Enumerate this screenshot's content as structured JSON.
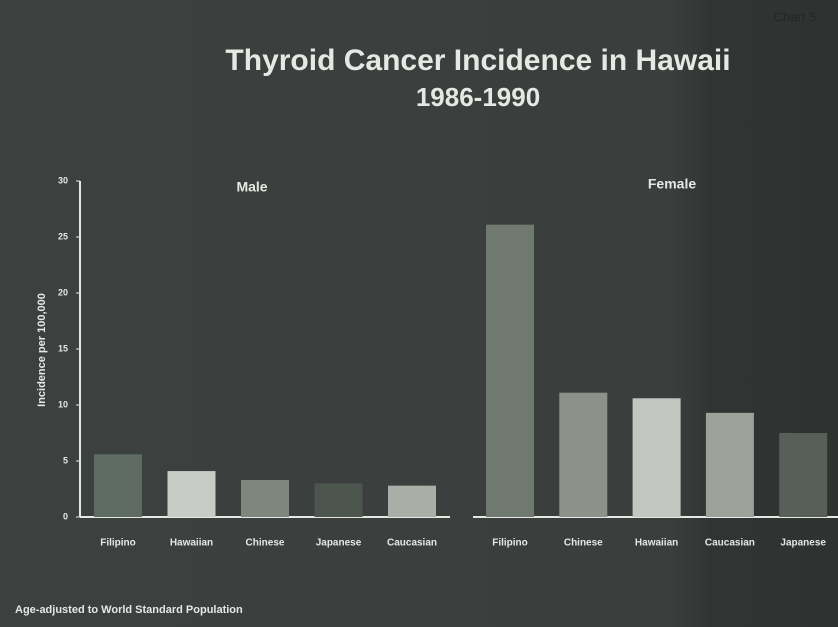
{
  "header": {
    "label": "Chart 5",
    "title": "Thyroid Cancer Incidence in Hawaii",
    "subtitle": "1986-1990"
  },
  "footnote": "Age-adjusted to World Standard Population",
  "chart_data": [
    {
      "type": "bar",
      "title": "Male",
      "y_label": "Incidence per 100,000",
      "categories": [
        "Filipino",
        "Hawaiian",
        "Chinese",
        "Japanese",
        "Caucasian"
      ],
      "values": [
        5.6,
        4.1,
        3.3,
        3.0,
        2.8
      ],
      "colors": [
        "#5d6b62",
        "#c9ccc6",
        "#7f867e",
        "#4d554f",
        "#aaaea7"
      ],
      "ylim": [
        0,
        30
      ],
      "yticks": [
        0,
        5,
        10,
        15,
        20,
        25,
        30
      ]
    },
    {
      "type": "bar",
      "title": "Female",
      "categories": [
        "Filipino",
        "Chinese",
        "Hawaiian",
        "Caucasian",
        "Japanese"
      ],
      "values": [
        26.1,
        11.1,
        10.6,
        9.3,
        7.5
      ],
      "colors": [
        "#707970",
        "#8c918a",
        "#c4c7c1",
        "#9da19a",
        "#575f58"
      ],
      "ylim": [
        0,
        30
      ]
    }
  ]
}
